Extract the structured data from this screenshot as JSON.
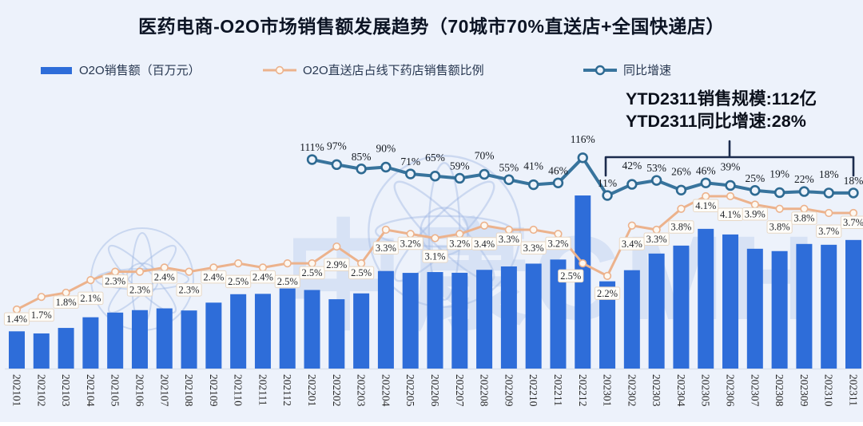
{
  "title": "医药电商-O2O市场销售额发展趋势（70城市70%直送店+全国快递店）",
  "legend": {
    "items": [
      {
        "label": "O2O销售额（百万元）",
        "type": "bar",
        "color": "#2e6dd9"
      },
      {
        "label": "O2O直送店占线下药店销售额比例",
        "type": "line",
        "color": "#ecb28c",
        "marker_fill": "#fdf8f1"
      },
      {
        "label": "同比增速",
        "type": "line",
        "color": "#38749d",
        "marker_fill": "#eef3fb",
        "marker_stroke": "#2e6a92"
      }
    ]
  },
  "annotation": {
    "line1": "YTD2311销售规模:112亿",
    "line2": "YTD2311同比增速:28%",
    "bracket_color": "#1b2b4d"
  },
  "watermark_text": "中康CMH",
  "colors": {
    "background": "#edf2fb",
    "title_text": "#0c1424",
    "data_label_text": "#1f2329",
    "label_box_bg": "#fffdf9",
    "label_box_border": "#e7d8c6",
    "axis_line": "#d9e1ee",
    "tick_text": "#2b2b2b"
  },
  "chart_data": {
    "type": "bar",
    "subtype": "combo: bars + 2 percent lines, labels shown on lines only",
    "title": "医药电商-O2O市场销售额发展趋势（70城市70%直送店+全国快递店）",
    "legend_position": "top",
    "gridlines": false,
    "y_axis_visible": false,
    "x_tick_rotation_deg": 90,
    "categories": [
      "202101",
      "202102",
      "202103",
      "202104",
      "202105",
      "202106",
      "202107",
      "202108",
      "202109",
      "202110",
      "202111",
      "202112",
      "202201",
      "202202",
      "202203",
      "202204",
      "202205",
      "202206",
      "202207",
      "202208",
      "202209",
      "202210",
      "202211",
      "202212",
      "202301",
      "202302",
      "202303",
      "202304",
      "202305",
      "202306",
      "202307",
      "202308",
      "202309",
      "202310",
      "202311"
    ],
    "series": [
      {
        "name": "O2O销售额（百万元）",
        "type": "bar",
        "unit": "百万元",
        "values_estimated_from_pixels": true,
        "values": [
          318,
          300,
          347,
          438,
          478,
          499,
          514,
          496,
          563,
          635,
          638,
          684,
          671,
          592,
          642,
          833,
          817,
          824,
          818,
          843,
          872,
          896,
          931,
          1478,
          745,
          840,
          982,
          1050,
          1193,
          1145,
          1023,
          1003,
          1064,
          1057,
          1098
        ]
      },
      {
        "name": "O2O直送店占线下药店销售额比例",
        "type": "line",
        "unit": "%",
        "values": [
          1.4,
          1.7,
          1.8,
          2.1,
          2.3,
          2.3,
          2.4,
          2.3,
          2.4,
          2.5,
          2.4,
          2.5,
          2.5,
          2.9,
          2.5,
          3.3,
          3.2,
          3.1,
          3.2,
          3.4,
          3.3,
          3.3,
          3.2,
          2.5,
          2.2,
          3.4,
          3.3,
          3.8,
          4.1,
          4.1,
          3.9,
          3.8,
          3.8,
          3.7,
          3.7
        ]
      },
      {
        "name": "同比增速",
        "type": "line",
        "unit": "%",
        "start_category": "202201",
        "values": [
          111,
          97,
          85,
          90,
          71,
          65,
          59,
          70,
          55,
          41,
          46,
          116,
          11,
          42,
          53,
          26,
          46,
          39,
          25,
          19,
          22,
          18,
          18
        ]
      }
    ],
    "annotations": [
      {
        "text": "YTD2311销售规模:112亿",
        "position": "top-right"
      },
      {
        "text": "YTD2311同比增速:28%",
        "position": "top-right"
      },
      {
        "shape": "bracket",
        "spans_categories": [
          "202301",
          "202311"
        ]
      }
    ]
  }
}
